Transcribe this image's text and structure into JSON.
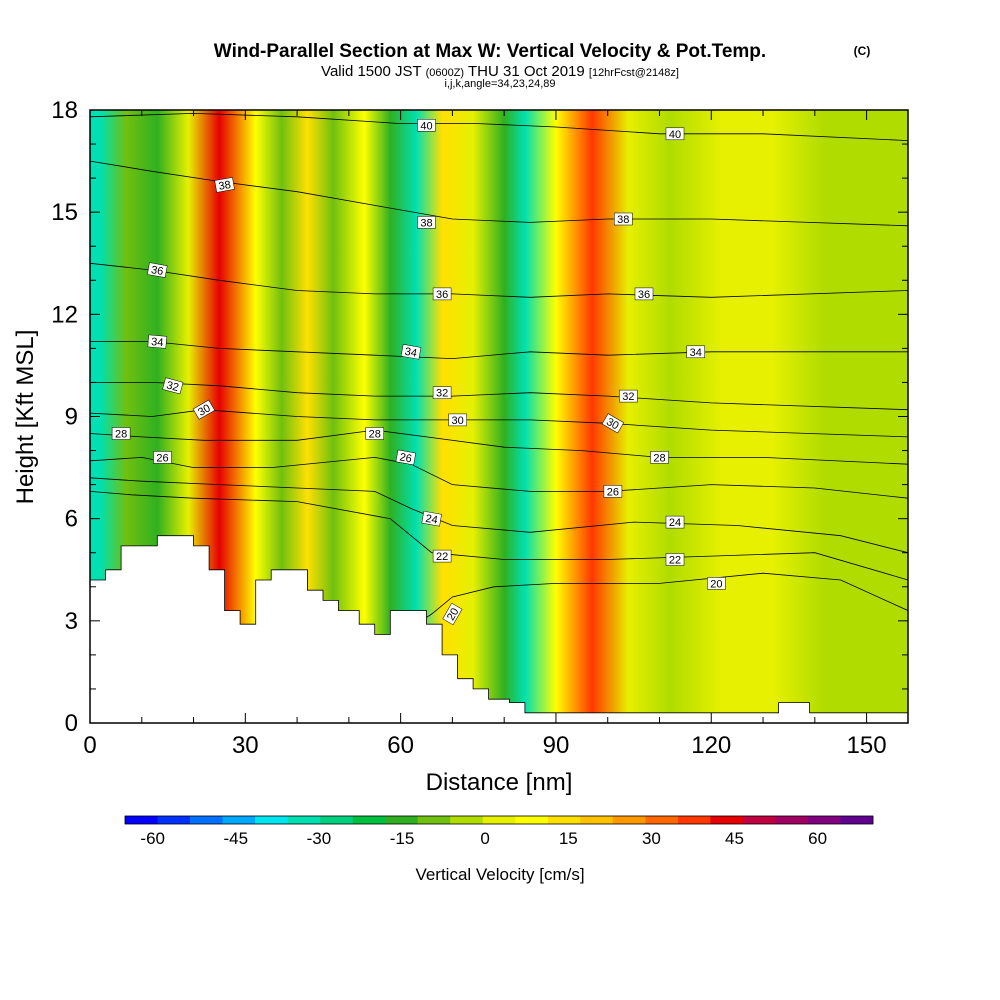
{
  "chart_data": {
    "type": "heatmap",
    "title": "Wind-Parallel Section at Max W: Vertical Velocity & Pot.Temp.",
    "title_mark": "(C)",
    "subtitle": {
      "main_left": "Valid 1500 JST",
      "utc": "(0600Z)",
      "main_right": "THU 31 Oct 2019",
      "forecast": "[12hrFcst@2148z]"
    },
    "indices": "i,j,k,angle=34,23,24,89",
    "xlabel": "Distance [nm]",
    "ylabel": "Height [Kft MSL]",
    "xlim": [
      0,
      158
    ],
    "ylim": [
      0,
      18
    ],
    "xticks": [
      0,
      30,
      60,
      90,
      120,
      150
    ],
    "yticks": [
      0,
      3,
      6,
      9,
      12,
      15,
      18
    ],
    "colorbar": {
      "label": "Vertical Velocity [cm/s]",
      "ticks": [
        -60,
        -45,
        -30,
        -15,
        0,
        15,
        30,
        45,
        60
      ],
      "range": [
        -65,
        70
      ],
      "colors": [
        "#0000ff",
        "#0030ff",
        "#0070ff",
        "#00a8ff",
        "#00e6f0",
        "#00e0b0",
        "#00d080",
        "#00c040",
        "#30b020",
        "#70c010",
        "#b0dc00",
        "#e6f000",
        "#ffff00",
        "#ffe000",
        "#ffc000",
        "#ff9800",
        "#ff6800",
        "#ff3800",
        "#e60000",
        "#c00040",
        "#a00060",
        "#800080",
        "#600090"
      ]
    },
    "velocity_bands": [
      {
        "x": 2,
        "value": -30
      },
      {
        "x": 7,
        "value": -10
      },
      {
        "x": 13,
        "value": -15
      },
      {
        "x": 19,
        "value": 5
      },
      {
        "x": 25,
        "value": 45
      },
      {
        "x": 32,
        "value": 10
      },
      {
        "x": 37,
        "value": -10
      },
      {
        "x": 42,
        "value": 15
      },
      {
        "x": 47,
        "value": -10
      },
      {
        "x": 53,
        "value": 10
      },
      {
        "x": 58,
        "value": -15
      },
      {
        "x": 63,
        "value": -30
      },
      {
        "x": 68,
        "value": 15
      },
      {
        "x": 74,
        "value": 5
      },
      {
        "x": 80,
        "value": -15
      },
      {
        "x": 84,
        "value": -30
      },
      {
        "x": 90,
        "value": 10
      },
      {
        "x": 97,
        "value": 40
      },
      {
        "x": 104,
        "value": 0
      },
      {
        "x": 112,
        "value": -5
      },
      {
        "x": 122,
        "value": 0
      },
      {
        "x": 132,
        "value": 5
      },
      {
        "x": 142,
        "value": -5
      },
      {
        "x": 152,
        "value": -5
      },
      {
        "x": 158,
        "value": -5
      }
    ],
    "terrain": [
      [
        0,
        4.2
      ],
      [
        3,
        4.2
      ],
      [
        3,
        4.5
      ],
      [
        6,
        4.5
      ],
      [
        6,
        5.2
      ],
      [
        13,
        5.2
      ],
      [
        13,
        5.5
      ],
      [
        20,
        5.5
      ],
      [
        20,
        5.2
      ],
      [
        23,
        5.2
      ],
      [
        23,
        4.5
      ],
      [
        26,
        4.5
      ],
      [
        26,
        3.3
      ],
      [
        29,
        3.3
      ],
      [
        29,
        2.9
      ],
      [
        32,
        2.9
      ],
      [
        32,
        4.2
      ],
      [
        35,
        4.2
      ],
      [
        35,
        4.5
      ],
      [
        42,
        4.5
      ],
      [
        42,
        3.9
      ],
      [
        45,
        3.9
      ],
      [
        45,
        3.6
      ],
      [
        48,
        3.6
      ],
      [
        48,
        3.3
      ],
      [
        52,
        3.3
      ],
      [
        52,
        2.9
      ],
      [
        55,
        2.9
      ],
      [
        55,
        2.6
      ],
      [
        58,
        2.6
      ],
      [
        58,
        3.3
      ],
      [
        65,
        3.3
      ],
      [
        65,
        2.9
      ],
      [
        68,
        2.9
      ],
      [
        68,
        2.0
      ],
      [
        71,
        2.0
      ],
      [
        71,
        1.3
      ],
      [
        74,
        1.3
      ],
      [
        74,
        1.0
      ],
      [
        77,
        1.0
      ],
      [
        77,
        0.7
      ],
      [
        81,
        0.7
      ],
      [
        81,
        0.6
      ],
      [
        84,
        0.6
      ],
      [
        84,
        0.3
      ],
      [
        133,
        0.3
      ],
      [
        133,
        0.6
      ],
      [
        139,
        0.6
      ],
      [
        139,
        0.3
      ],
      [
        158,
        0.3
      ]
    ],
    "theta_contours": [
      {
        "value": 20,
        "label": "20",
        "points": [
          [
            62,
            2.8
          ],
          [
            66,
            3.2
          ],
          [
            70,
            3.7
          ],
          [
            78,
            4.0
          ],
          [
            90,
            4.1
          ],
          [
            110,
            4.1
          ],
          [
            130,
            4.4
          ],
          [
            145,
            4.2
          ],
          [
            158,
            3.3
          ]
        ]
      },
      {
        "value": 22,
        "label": "22",
        "points": [
          [
            0,
            6.8
          ],
          [
            8,
            6.7
          ],
          [
            20,
            6.6
          ],
          [
            40,
            6.5
          ],
          [
            58,
            6.0
          ],
          [
            66,
            5.0
          ],
          [
            80,
            4.8
          ],
          [
            100,
            4.8
          ],
          [
            120,
            4.9
          ],
          [
            140,
            5.0
          ],
          [
            158,
            4.2
          ]
        ]
      },
      {
        "value": 24,
        "label": "24",
        "points": [
          [
            0,
            7.2
          ],
          [
            10,
            7.1
          ],
          [
            25,
            7.0
          ],
          [
            40,
            6.9
          ],
          [
            55,
            6.8
          ],
          [
            62,
            6.3
          ],
          [
            70,
            5.8
          ],
          [
            85,
            5.6
          ],
          [
            105,
            5.9
          ],
          [
            125,
            5.8
          ],
          [
            145,
            5.5
          ],
          [
            158,
            5.0
          ]
        ]
      },
      {
        "value": 26,
        "label": "26",
        "points": [
          [
            0,
            7.7
          ],
          [
            10,
            7.8
          ],
          [
            20,
            7.5
          ],
          [
            35,
            7.5
          ],
          [
            55,
            7.8
          ],
          [
            62,
            7.6
          ],
          [
            70,
            7.0
          ],
          [
            85,
            6.8
          ],
          [
            100,
            6.8
          ],
          [
            120,
            7.0
          ],
          [
            140,
            6.9
          ],
          [
            158,
            6.6
          ]
        ]
      },
      {
        "value": 28,
        "label": "28",
        "points": [
          [
            0,
            8.5
          ],
          [
            10,
            8.4
          ],
          [
            22,
            8.3
          ],
          [
            40,
            8.3
          ],
          [
            55,
            8.6
          ],
          [
            65,
            8.4
          ],
          [
            80,
            8.1
          ],
          [
            95,
            8.0
          ],
          [
            110,
            7.8
          ],
          [
            130,
            7.8
          ],
          [
            158,
            7.6
          ]
        ]
      },
      {
        "value": 30,
        "label": "30",
        "points": [
          [
            0,
            9.1
          ],
          [
            12,
            9.0
          ],
          [
            22,
            9.2
          ],
          [
            40,
            9.0
          ],
          [
            55,
            8.9
          ],
          [
            70,
            8.9
          ],
          [
            85,
            8.9
          ],
          [
            100,
            8.8
          ],
          [
            120,
            8.6
          ],
          [
            158,
            8.4
          ]
        ]
      },
      {
        "value": 32,
        "label": "32",
        "points": [
          [
            0,
            10.0
          ],
          [
            12,
            10.0
          ],
          [
            25,
            9.9
          ],
          [
            40,
            9.7
          ],
          [
            55,
            9.6
          ],
          [
            70,
            9.6
          ],
          [
            85,
            9.7
          ],
          [
            100,
            9.6
          ],
          [
            120,
            9.4
          ],
          [
            158,
            9.2
          ]
        ]
      },
      {
        "value": 34,
        "label": "34",
        "points": [
          [
            0,
            11.2
          ],
          [
            12,
            11.2
          ],
          [
            25,
            11.0
          ],
          [
            40,
            10.9
          ],
          [
            55,
            10.8
          ],
          [
            70,
            10.7
          ],
          [
            85,
            10.9
          ],
          [
            100,
            10.8
          ],
          [
            120,
            10.9
          ],
          [
            158,
            10.9
          ]
        ]
      },
      {
        "value": 36,
        "label": "36",
        "points": [
          [
            0,
            13.5
          ],
          [
            12,
            13.3
          ],
          [
            25,
            13.0
          ],
          [
            40,
            12.7
          ],
          [
            55,
            12.6
          ],
          [
            70,
            12.6
          ],
          [
            85,
            12.5
          ],
          [
            100,
            12.6
          ],
          [
            120,
            12.5
          ],
          [
            158,
            12.7
          ]
        ]
      },
      {
        "value": 38,
        "label": "38",
        "points": [
          [
            0,
            16.5
          ],
          [
            12,
            16.2
          ],
          [
            25,
            15.9
          ],
          [
            40,
            15.6
          ],
          [
            55,
            15.2
          ],
          [
            70,
            14.8
          ],
          [
            85,
            14.7
          ],
          [
            100,
            14.8
          ],
          [
            120,
            14.8
          ],
          [
            158,
            14.6
          ]
        ]
      },
      {
        "value": 40,
        "label": "40",
        "points": [
          [
            0,
            17.8
          ],
          [
            20,
            17.9
          ],
          [
            40,
            17.8
          ],
          [
            60,
            17.6
          ],
          [
            75,
            17.6
          ],
          [
            90,
            17.5
          ],
          [
            110,
            17.3
          ],
          [
            130,
            17.3
          ],
          [
            158,
            17.1
          ]
        ]
      }
    ],
    "contour_labels": [
      {
        "text": "40",
        "x": 65,
        "y": 17.55,
        "angle": 0
      },
      {
        "text": "40",
        "x": 113,
        "y": 17.3,
        "angle": 0
      },
      {
        "text": "38",
        "x": 26,
        "y": 15.8,
        "angle": -10
      },
      {
        "text": "38",
        "x": 65,
        "y": 14.7,
        "angle": 0
      },
      {
        "text": "38",
        "x": 103,
        "y": 14.8,
        "angle": 0
      },
      {
        "text": "36",
        "x": 13,
        "y": 13.3,
        "angle": 10
      },
      {
        "text": "36",
        "x": 68,
        "y": 12.6,
        "angle": 0
      },
      {
        "text": "36",
        "x": 107,
        "y": 12.6,
        "angle": 0
      },
      {
        "text": "34",
        "x": 13,
        "y": 11.2,
        "angle": 5
      },
      {
        "text": "34",
        "x": 62,
        "y": 10.9,
        "angle": 10
      },
      {
        "text": "34",
        "x": 117,
        "y": 10.9,
        "angle": 0
      },
      {
        "text": "32",
        "x": 16,
        "y": 9.9,
        "angle": 15
      },
      {
        "text": "32",
        "x": 68,
        "y": 9.7,
        "angle": 0
      },
      {
        "text": "32",
        "x": 104,
        "y": 9.6,
        "angle": 0
      },
      {
        "text": "30",
        "x": 22,
        "y": 9.2,
        "angle": -30
      },
      {
        "text": "30",
        "x": 71,
        "y": 8.9,
        "angle": 0
      },
      {
        "text": "30",
        "x": 101,
        "y": 8.8,
        "angle": 30
      },
      {
        "text": "28",
        "x": 6,
        "y": 8.5,
        "angle": 0
      },
      {
        "text": "28",
        "x": 55,
        "y": 8.5,
        "angle": 0
      },
      {
        "text": "28",
        "x": 110,
        "y": 7.8,
        "angle": 0
      },
      {
        "text": "26",
        "x": 14,
        "y": 7.8,
        "angle": 0
      },
      {
        "text": "26",
        "x": 61,
        "y": 7.8,
        "angle": 10
      },
      {
        "text": "26",
        "x": 101,
        "y": 6.8,
        "angle": 0
      },
      {
        "text": "24",
        "x": 66,
        "y": 6.0,
        "angle": 10
      },
      {
        "text": "24",
        "x": 113,
        "y": 5.9,
        "angle": 0
      },
      {
        "text": "22",
        "x": 68,
        "y": 4.9,
        "angle": 0
      },
      {
        "text": "22",
        "x": 113,
        "y": 4.8,
        "angle": 0
      },
      {
        "text": "20",
        "x": 70,
        "y": 3.2,
        "angle": -60
      },
      {
        "text": "20",
        "x": 121,
        "y": 4.1,
        "angle": 0
      }
    ]
  }
}
